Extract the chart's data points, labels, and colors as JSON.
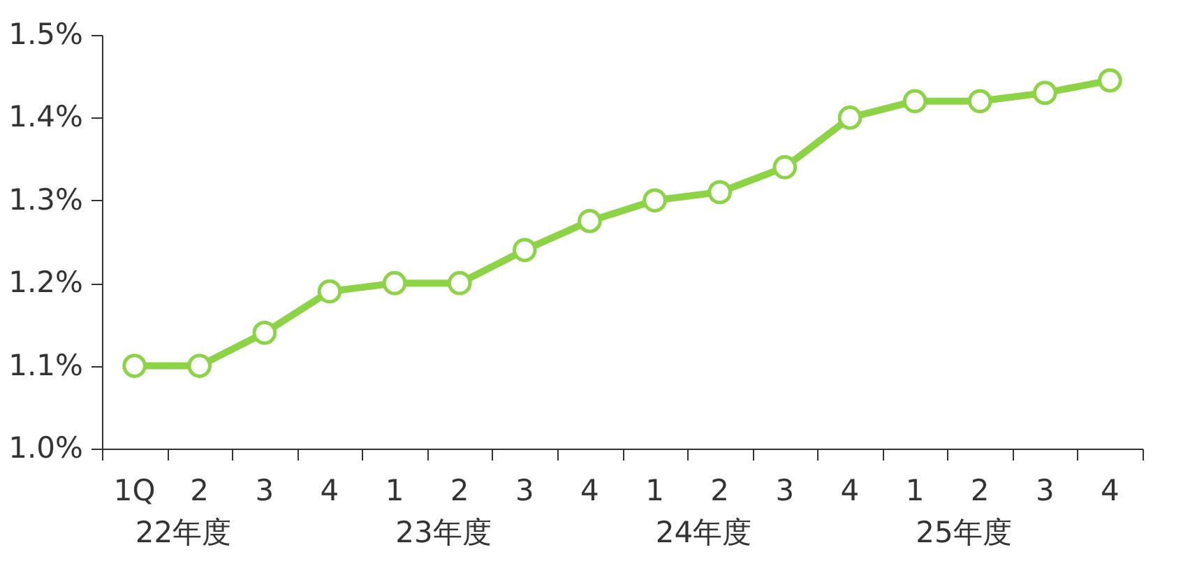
{
  "chart_data": {
    "type": "line",
    "categories": [
      "1Q",
      "2",
      "3",
      "4",
      "1",
      "2",
      "3",
      "4",
      "1",
      "2",
      "3",
      "4",
      "1",
      "2",
      "3",
      "4"
    ],
    "series": [
      {
        "color": "#8cd446",
        "values": [
          1.1,
          1.1,
          1.14,
          1.19,
          1.2,
          1.2,
          1.24,
          1.275,
          1.3,
          1.31,
          1.34,
          1.4,
          1.42,
          1.42,
          1.43,
          1.445
        ]
      }
    ],
    "ylim": [
      1.0,
      1.5
    ],
    "yticks": [
      {
        "value": 1.0,
        "label": "1.0%"
      },
      {
        "value": 1.1,
        "label": "1.1%"
      },
      {
        "value": 1.2,
        "label": "1.2%"
      },
      {
        "value": 1.3,
        "label": "1.3%"
      },
      {
        "value": 1.4,
        "label": "1.4%"
      },
      {
        "value": 1.5,
        "label": "1.5%"
      }
    ],
    "annotations": [
      "22年度",
      "23年度",
      "24年度",
      "25年度"
    ],
    "marker": "circle",
    "line_style": "solid",
    "grid": false
  }
}
